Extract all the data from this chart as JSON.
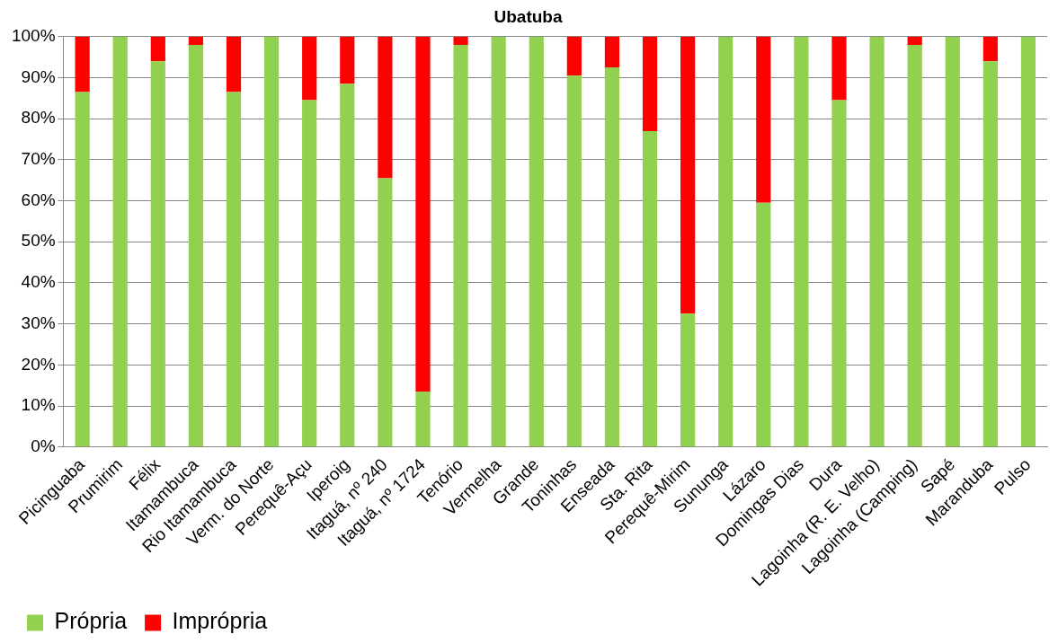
{
  "chart_data": {
    "type": "bar",
    "title": "Ubatuba",
    "stacked": true,
    "grid": "y",
    "legend": "bottom left",
    "categories": [
      "Picinguaba",
      "Prumirim",
      "Félix",
      "Itamambuca",
      "Rio Itamambuca",
      "Verm. do Norte",
      "Perequê-Açu",
      "Iperoig",
      "Itaguá, nº 240",
      "Itaguá, nº 1724",
      "Tenório",
      "Vermelha",
      "Grande",
      "Toninhas",
      "Enseada",
      "Sta. Rita",
      "Perequê-Mirim",
      "Sununga",
      "Lázaro",
      "Domingas Dias",
      "Dura",
      "Lagoinha (R. E. Velho)",
      "Lagoinha (Camping)",
      "Sapé",
      "Maranduba",
      "Pulso"
    ],
    "series": [
      {
        "name": "Própria",
        "color": "#92d050",
        "values": [
          86.5,
          100,
          94,
          98,
          86.5,
          100,
          84.5,
          88.5,
          65.5,
          13.5,
          98,
          100,
          100,
          90.5,
          92.5,
          77,
          32.5,
          100,
          59.5,
          100,
          84.5,
          100,
          98,
          100,
          94,
          100
        ]
      },
      {
        "name": "Imprópria",
        "color": "#ff0000",
        "values": [
          13.5,
          0,
          6,
          2,
          13.5,
          0,
          15.5,
          11.5,
          34.5,
          86.5,
          2,
          0,
          0,
          9.5,
          7.5,
          23,
          67.5,
          0,
          40.5,
          0,
          15.5,
          0,
          2,
          0,
          6,
          0
        ]
      }
    ],
    "ylim": [
      0,
      100
    ],
    "yticks": [
      {
        "value": 0,
        "label": "0%"
      },
      {
        "value": 10,
        "label": "10%"
      },
      {
        "value": 20,
        "label": "20%"
      },
      {
        "value": 30,
        "label": "30%"
      },
      {
        "value": 40,
        "label": "40%"
      },
      {
        "value": 50,
        "label": "50%"
      },
      {
        "value": 60,
        "label": "60%"
      },
      {
        "value": 70,
        "label": "70%"
      },
      {
        "value": 80,
        "label": "80%"
      },
      {
        "value": 90,
        "label": "90%"
      },
      {
        "value": 100,
        "label": "100%"
      }
    ]
  }
}
